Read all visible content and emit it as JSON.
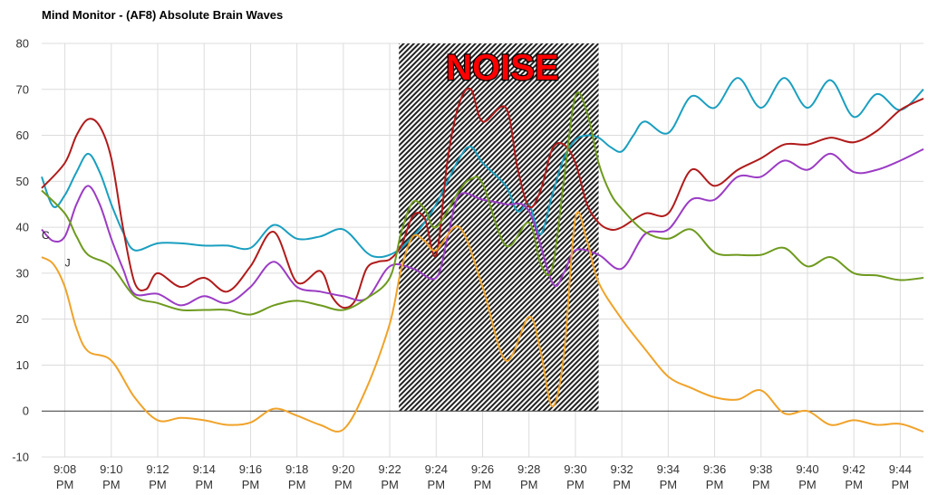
{
  "chart_data": {
    "type": "line",
    "title": "Mind Monitor - (AF8) Absolute Brain Waves",
    "xlabel": "",
    "ylabel": "",
    "ylim": [
      -10,
      80
    ],
    "yticks": [
      -10,
      0,
      10,
      20,
      30,
      40,
      50,
      60,
      70,
      80
    ],
    "xlim": [
      7.0,
      45.0
    ],
    "xticks": [
      {
        "t": 8,
        "time": "9:08",
        "ampm": "PM"
      },
      {
        "t": 10,
        "time": "9:10",
        "ampm": "PM"
      },
      {
        "t": 12,
        "time": "9:12",
        "ampm": "PM"
      },
      {
        "t": 14,
        "time": "9:14",
        "ampm": "PM"
      },
      {
        "t": 16,
        "time": "9:16",
        "ampm": "PM"
      },
      {
        "t": 18,
        "time": "9:18",
        "ampm": "PM"
      },
      {
        "t": 20,
        "time": "9:20",
        "ampm": "PM"
      },
      {
        "t": 22,
        "time": "9:22",
        "ampm": "PM"
      },
      {
        "t": 24,
        "time": "9:24",
        "ampm": "PM"
      },
      {
        "t": 26,
        "time": "9:26",
        "ampm": "PM"
      },
      {
        "t": 28,
        "time": "9:28",
        "ampm": "PM"
      },
      {
        "t": 30,
        "time": "9:30",
        "ampm": "PM"
      },
      {
        "t": 32,
        "time": "9:32",
        "ampm": "PM"
      },
      {
        "t": 34,
        "time": "9:34",
        "ampm": "PM"
      },
      {
        "t": 36,
        "time": "9:36",
        "ampm": "PM"
      },
      {
        "t": 38,
        "time": "9:38",
        "ampm": "PM"
      },
      {
        "t": 40,
        "time": "9:40",
        "ampm": "PM"
      },
      {
        "t": 42,
        "time": "9:42",
        "ampm": "PM"
      },
      {
        "t": 44,
        "time": "9:44",
        "ampm": "PM"
      }
    ],
    "grid": true,
    "noise_region": {
      "x_start": 22.4,
      "x_end": 31.0,
      "label": "NOISE"
    },
    "annotations": [
      {
        "text": "C",
        "x": 7.0,
        "y": 37.5
      },
      {
        "text": "J",
        "x": 8.0,
        "y": 31.5
      }
    ],
    "series": [
      {
        "color": "#1a9fc0",
        "points": [
          [
            7.0,
            51
          ],
          [
            7.5,
            44.5
          ],
          [
            8,
            47
          ],
          [
            8.5,
            52
          ],
          [
            9,
            56
          ],
          [
            9.5,
            52
          ],
          [
            10,
            45
          ],
          [
            10.5,
            39
          ],
          [
            11,
            35
          ],
          [
            12,
            36.5
          ],
          [
            13,
            36.5
          ],
          [
            14,
            36
          ],
          [
            15,
            36
          ],
          [
            16,
            35.5
          ],
          [
            17,
            40.5
          ],
          [
            18,
            37.5
          ],
          [
            19,
            38
          ],
          [
            20,
            39.5
          ],
          [
            21,
            34.5
          ],
          [
            21.5,
            33.5
          ],
          [
            22,
            34
          ],
          [
            22.5,
            35.5
          ],
          [
            23,
            38
          ],
          [
            23.5,
            41
          ],
          [
            24,
            45
          ],
          [
            25,
            55
          ],
          [
            25.5,
            57.5
          ],
          [
            26,
            54
          ],
          [
            27,
            49
          ],
          [
            27.5,
            43.5
          ],
          [
            28,
            45
          ],
          [
            28.5,
            38.5
          ],
          [
            29,
            47
          ],
          [
            29.5,
            55
          ],
          [
            30,
            59
          ],
          [
            30.5,
            60
          ],
          [
            31,
            59.5
          ],
          [
            31.5,
            57.5
          ],
          [
            32,
            56.5
          ],
          [
            32.5,
            60
          ],
          [
            33,
            63
          ],
          [
            34,
            60.5
          ],
          [
            35,
            68.5
          ],
          [
            36,
            66
          ],
          [
            37,
            72.5
          ],
          [
            38,
            66
          ],
          [
            39,
            72.5
          ],
          [
            40,
            66
          ],
          [
            41,
            72
          ],
          [
            42,
            64
          ],
          [
            43,
            69
          ],
          [
            44,
            65.5
          ],
          [
            45,
            70
          ]
        ]
      },
      {
        "color": "#b01b1b",
        "points": [
          [
            7.0,
            48.5
          ],
          [
            8,
            54
          ],
          [
            8.5,
            60
          ],
          [
            9,
            63.5
          ],
          [
            9.5,
            62
          ],
          [
            10,
            55
          ],
          [
            10.5,
            40
          ],
          [
            11,
            28
          ],
          [
            11.5,
            26.5
          ],
          [
            12,
            30
          ],
          [
            13,
            27
          ],
          [
            14,
            29
          ],
          [
            15,
            26
          ],
          [
            16,
            31.5
          ],
          [
            17,
            39
          ],
          [
            18,
            28
          ],
          [
            19,
            30.5
          ],
          [
            19.5,
            25
          ],
          [
            20,
            22.5
          ],
          [
            20.5,
            24
          ],
          [
            21,
            31
          ],
          [
            21.5,
            32.5
          ],
          [
            22,
            33
          ],
          [
            22.5,
            36
          ],
          [
            23,
            42.5
          ],
          [
            23.5,
            42
          ],
          [
            24,
            34
          ],
          [
            24.5,
            55
          ],
          [
            25,
            67
          ],
          [
            25.5,
            70
          ],
          [
            26,
            63
          ],
          [
            27,
            66
          ],
          [
            27.5,
            53
          ],
          [
            28,
            44.5
          ],
          [
            28.5,
            48
          ],
          [
            29,
            57
          ],
          [
            29.5,
            58
          ],
          [
            30,
            54
          ],
          [
            30.5,
            45
          ],
          [
            31,
            41
          ],
          [
            31.5,
            39.5
          ],
          [
            32,
            40
          ],
          [
            33,
            43
          ],
          [
            34,
            43
          ],
          [
            35,
            52.5
          ],
          [
            36,
            49
          ],
          [
            37,
            52.5
          ],
          [
            38,
            55
          ],
          [
            39,
            58
          ],
          [
            40,
            58
          ],
          [
            41,
            59.5
          ],
          [
            42,
            58.5
          ],
          [
            43,
            61
          ],
          [
            44,
            65.5
          ],
          [
            45,
            68
          ]
        ]
      },
      {
        "color": "#9b3cc4",
        "points": [
          [
            7.0,
            39.5
          ],
          [
            7.5,
            37
          ],
          [
            8,
            38
          ],
          [
            8.5,
            45
          ],
          [
            9,
            49
          ],
          [
            9.5,
            45
          ],
          [
            10,
            37.5
          ],
          [
            10.5,
            31
          ],
          [
            11,
            25.5
          ],
          [
            12,
            25.5
          ],
          [
            13,
            23
          ],
          [
            14,
            25
          ],
          [
            15,
            23.5
          ],
          [
            16,
            27
          ],
          [
            17,
            32.5
          ],
          [
            18,
            27
          ],
          [
            19,
            26
          ],
          [
            20,
            25
          ],
          [
            21,
            24.5
          ],
          [
            22,
            31.5
          ],
          [
            23,
            31
          ],
          [
            24,
            29
          ],
          [
            24.5,
            38
          ],
          [
            25,
            47
          ],
          [
            26,
            46
          ],
          [
            27,
            45
          ],
          [
            28,
            43.5
          ],
          [
            29,
            28
          ],
          [
            29.5,
            30
          ],
          [
            30,
            35
          ],
          [
            31,
            34
          ],
          [
            32,
            31
          ],
          [
            33,
            38.5
          ],
          [
            34,
            39.5
          ],
          [
            35,
            46
          ],
          [
            36,
            46
          ],
          [
            37,
            51
          ],
          [
            38,
            51
          ],
          [
            39,
            54.5
          ],
          [
            40,
            52.5
          ],
          [
            41,
            56
          ],
          [
            42,
            52
          ],
          [
            43,
            52.5
          ],
          [
            44,
            54.5
          ],
          [
            45,
            57
          ]
        ]
      },
      {
        "color": "#6e9a1e",
        "points": [
          [
            7.0,
            48
          ],
          [
            8,
            43
          ],
          [
            8.5,
            38
          ],
          [
            9,
            34
          ],
          [
            10,
            31.5
          ],
          [
            11,
            25
          ],
          [
            12,
            23.5
          ],
          [
            13,
            22
          ],
          [
            14,
            22
          ],
          [
            15,
            22
          ],
          [
            16,
            21
          ],
          [
            17,
            23
          ],
          [
            18,
            24
          ],
          [
            19,
            23
          ],
          [
            20,
            22
          ],
          [
            21,
            24.5
          ],
          [
            22,
            29
          ],
          [
            22.5,
            39
          ],
          [
            23,
            45.5
          ],
          [
            23.5,
            44
          ],
          [
            24,
            40
          ],
          [
            25,
            48
          ],
          [
            25.5,
            50.5
          ],
          [
            26,
            49.5
          ],
          [
            27,
            36
          ],
          [
            28,
            41
          ],
          [
            28.5,
            32
          ],
          [
            29,
            31
          ],
          [
            29.5,
            50
          ],
          [
            30,
            68.5
          ],
          [
            30.5,
            65
          ],
          [
            31,
            54
          ],
          [
            31.5,
            47.5
          ],
          [
            32,
            44
          ],
          [
            33,
            39
          ],
          [
            34,
            37.5
          ],
          [
            35,
            39.5
          ],
          [
            36,
            34.5
          ],
          [
            37,
            34
          ],
          [
            38,
            34
          ],
          [
            39,
            35.5
          ],
          [
            40,
            31.5
          ],
          [
            41,
            33.5
          ],
          [
            42,
            30
          ],
          [
            43,
            29.5
          ],
          [
            44,
            28.5
          ],
          [
            45,
            29
          ]
        ]
      },
      {
        "color": "#f0a32a",
        "points": [
          [
            7.0,
            33.5
          ],
          [
            7.5,
            32
          ],
          [
            8,
            27
          ],
          [
            8.5,
            18
          ],
          [
            9,
            13
          ],
          [
            10,
            11
          ],
          [
            11,
            3
          ],
          [
            12,
            -2
          ],
          [
            13,
            -1.5
          ],
          [
            14,
            -2
          ],
          [
            15,
            -3
          ],
          [
            16,
            -2.5
          ],
          [
            17,
            0.5
          ],
          [
            18,
            -1
          ],
          [
            19,
            -3
          ],
          [
            20,
            -4
          ],
          [
            21,
            5
          ],
          [
            22,
            19
          ],
          [
            22.5,
            31
          ],
          [
            23,
            38
          ],
          [
            23.5,
            37
          ],
          [
            24,
            35
          ],
          [
            25,
            40
          ],
          [
            26,
            27
          ],
          [
            27,
            11
          ],
          [
            28,
            20.5
          ],
          [
            28.5,
            13
          ],
          [
            29,
            1
          ],
          [
            29.5,
            12
          ],
          [
            30,
            42
          ],
          [
            30.5,
            37
          ],
          [
            31,
            28
          ],
          [
            32,
            20
          ],
          [
            33,
            13.5
          ],
          [
            34,
            7.5
          ],
          [
            35,
            5
          ],
          [
            36,
            3
          ],
          [
            37,
            2.5
          ],
          [
            38,
            4.5
          ],
          [
            39,
            -0.5
          ],
          [
            40,
            0
          ],
          [
            41,
            -3
          ],
          [
            42,
            -2
          ],
          [
            43,
            -3
          ],
          [
            44,
            -2.8
          ],
          [
            45,
            -4.5
          ]
        ]
      }
    ]
  }
}
